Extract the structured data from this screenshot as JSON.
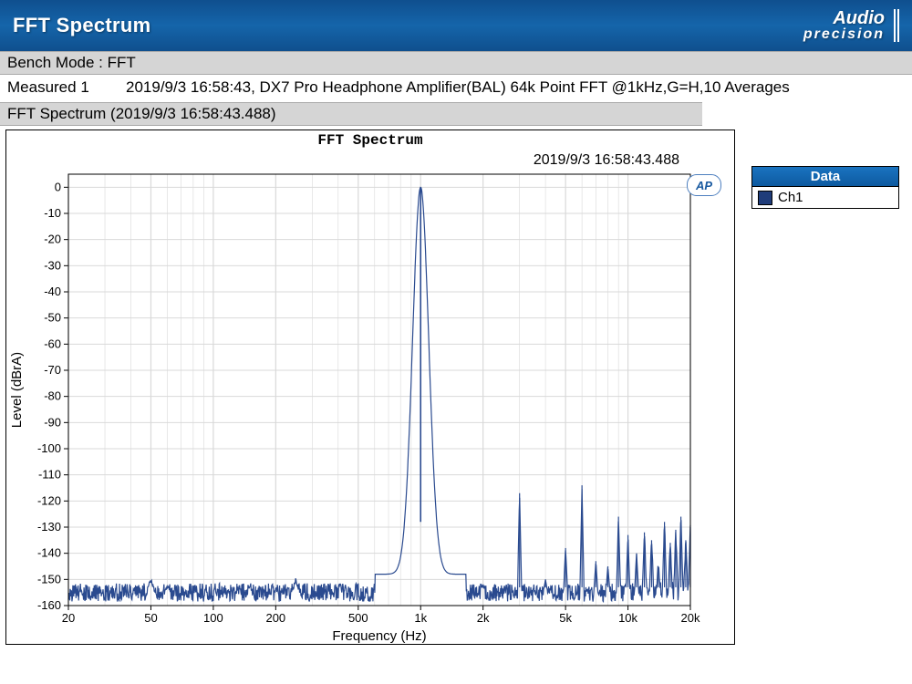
{
  "titlebar": {
    "title": "FFT Spectrum",
    "logo_line1": "Audio",
    "logo_line2": "precision"
  },
  "bench_mode_label": "Bench Mode :",
  "bench_mode_value": "FFT",
  "measured_label": "Measured 1",
  "measured_value": "2019/9/3 16:58:43, DX7 Pro Headphone Amplifier(BAL) 64k Point FFT @1kHz,G=H,10 Averages",
  "panel_header": "FFT Spectrum (2019/9/3 16:58:43.488)",
  "chart": {
    "type": "line",
    "title_inner": "FFT Spectrum",
    "timestamp": "2019/9/3 16:58:43.488",
    "ap_badge": "AP",
    "xlabel": "Frequency (Hz)",
    "ylabel": "Level (dBrA)",
    "xscale": "log",
    "xlim": [
      20,
      20000
    ],
    "ylim": [
      -160,
      5
    ],
    "ytick_step": 10,
    "yticks": [
      0,
      -10,
      -20,
      -30,
      -40,
      -50,
      -60,
      -70,
      -80,
      -90,
      -100,
      -110,
      -120,
      -130,
      -140,
      -150,
      -160
    ],
    "xticks": [
      20,
      50,
      100,
      200,
      500,
      1000,
      2000,
      5000,
      10000,
      20000
    ],
    "xtick_labels": [
      "20",
      "50",
      "100",
      "200",
      "500",
      "1k",
      "2k",
      "5k",
      "10k",
      "20k"
    ],
    "grid_minor": true,
    "noise_floor_db": -155,
    "noise_jitter_db": 3.5,
    "fundamental_hz": 1000,
    "fundamental_db": 0,
    "skirt_width_oct": 0.25,
    "skirt_depth_db": -148,
    "harmonics": [
      {
        "hz": 2000,
        "db": -152
      },
      {
        "hz": 3000,
        "db": -117
      },
      {
        "hz": 4000,
        "db": -150
      },
      {
        "hz": 5000,
        "db": -138
      },
      {
        "hz": 6000,
        "db": -114
      },
      {
        "hz": 7000,
        "db": -143
      },
      {
        "hz": 8000,
        "db": -145
      },
      {
        "hz": 9000,
        "db": -126
      },
      {
        "hz": 10000,
        "db": -133
      },
      {
        "hz": 11000,
        "db": -140
      },
      {
        "hz": 12000,
        "db": -132
      },
      {
        "hz": 13000,
        "db": -135
      },
      {
        "hz": 14000,
        "db": -145
      },
      {
        "hz": 15000,
        "db": -128
      },
      {
        "hz": 16000,
        "db": -136
      },
      {
        "hz": 17000,
        "db": -131
      },
      {
        "hz": 18000,
        "db": -126
      },
      {
        "hz": 19000,
        "db": -135
      },
      {
        "hz": 20000,
        "db": -130
      }
    ],
    "low_bumps": [
      {
        "hz": 50,
        "db": -150
      },
      {
        "hz": 60,
        "db": -152
      },
      {
        "hz": 150,
        "db": -152
      },
      {
        "hz": 250,
        "db": -150
      }
    ],
    "background_color": "#ffffff",
    "grid_color": "#d9d9d9",
    "axis_color": "#000000",
    "line_color": "#2a4a8f",
    "line_width": 1.2,
    "tick_fontsize": 13,
    "label_fontsize": 15,
    "title_fontsize": 16
  },
  "legend": {
    "header": "Data",
    "items": [
      {
        "label": "Ch1",
        "swatch_color": "#1f3c7a"
      }
    ]
  }
}
